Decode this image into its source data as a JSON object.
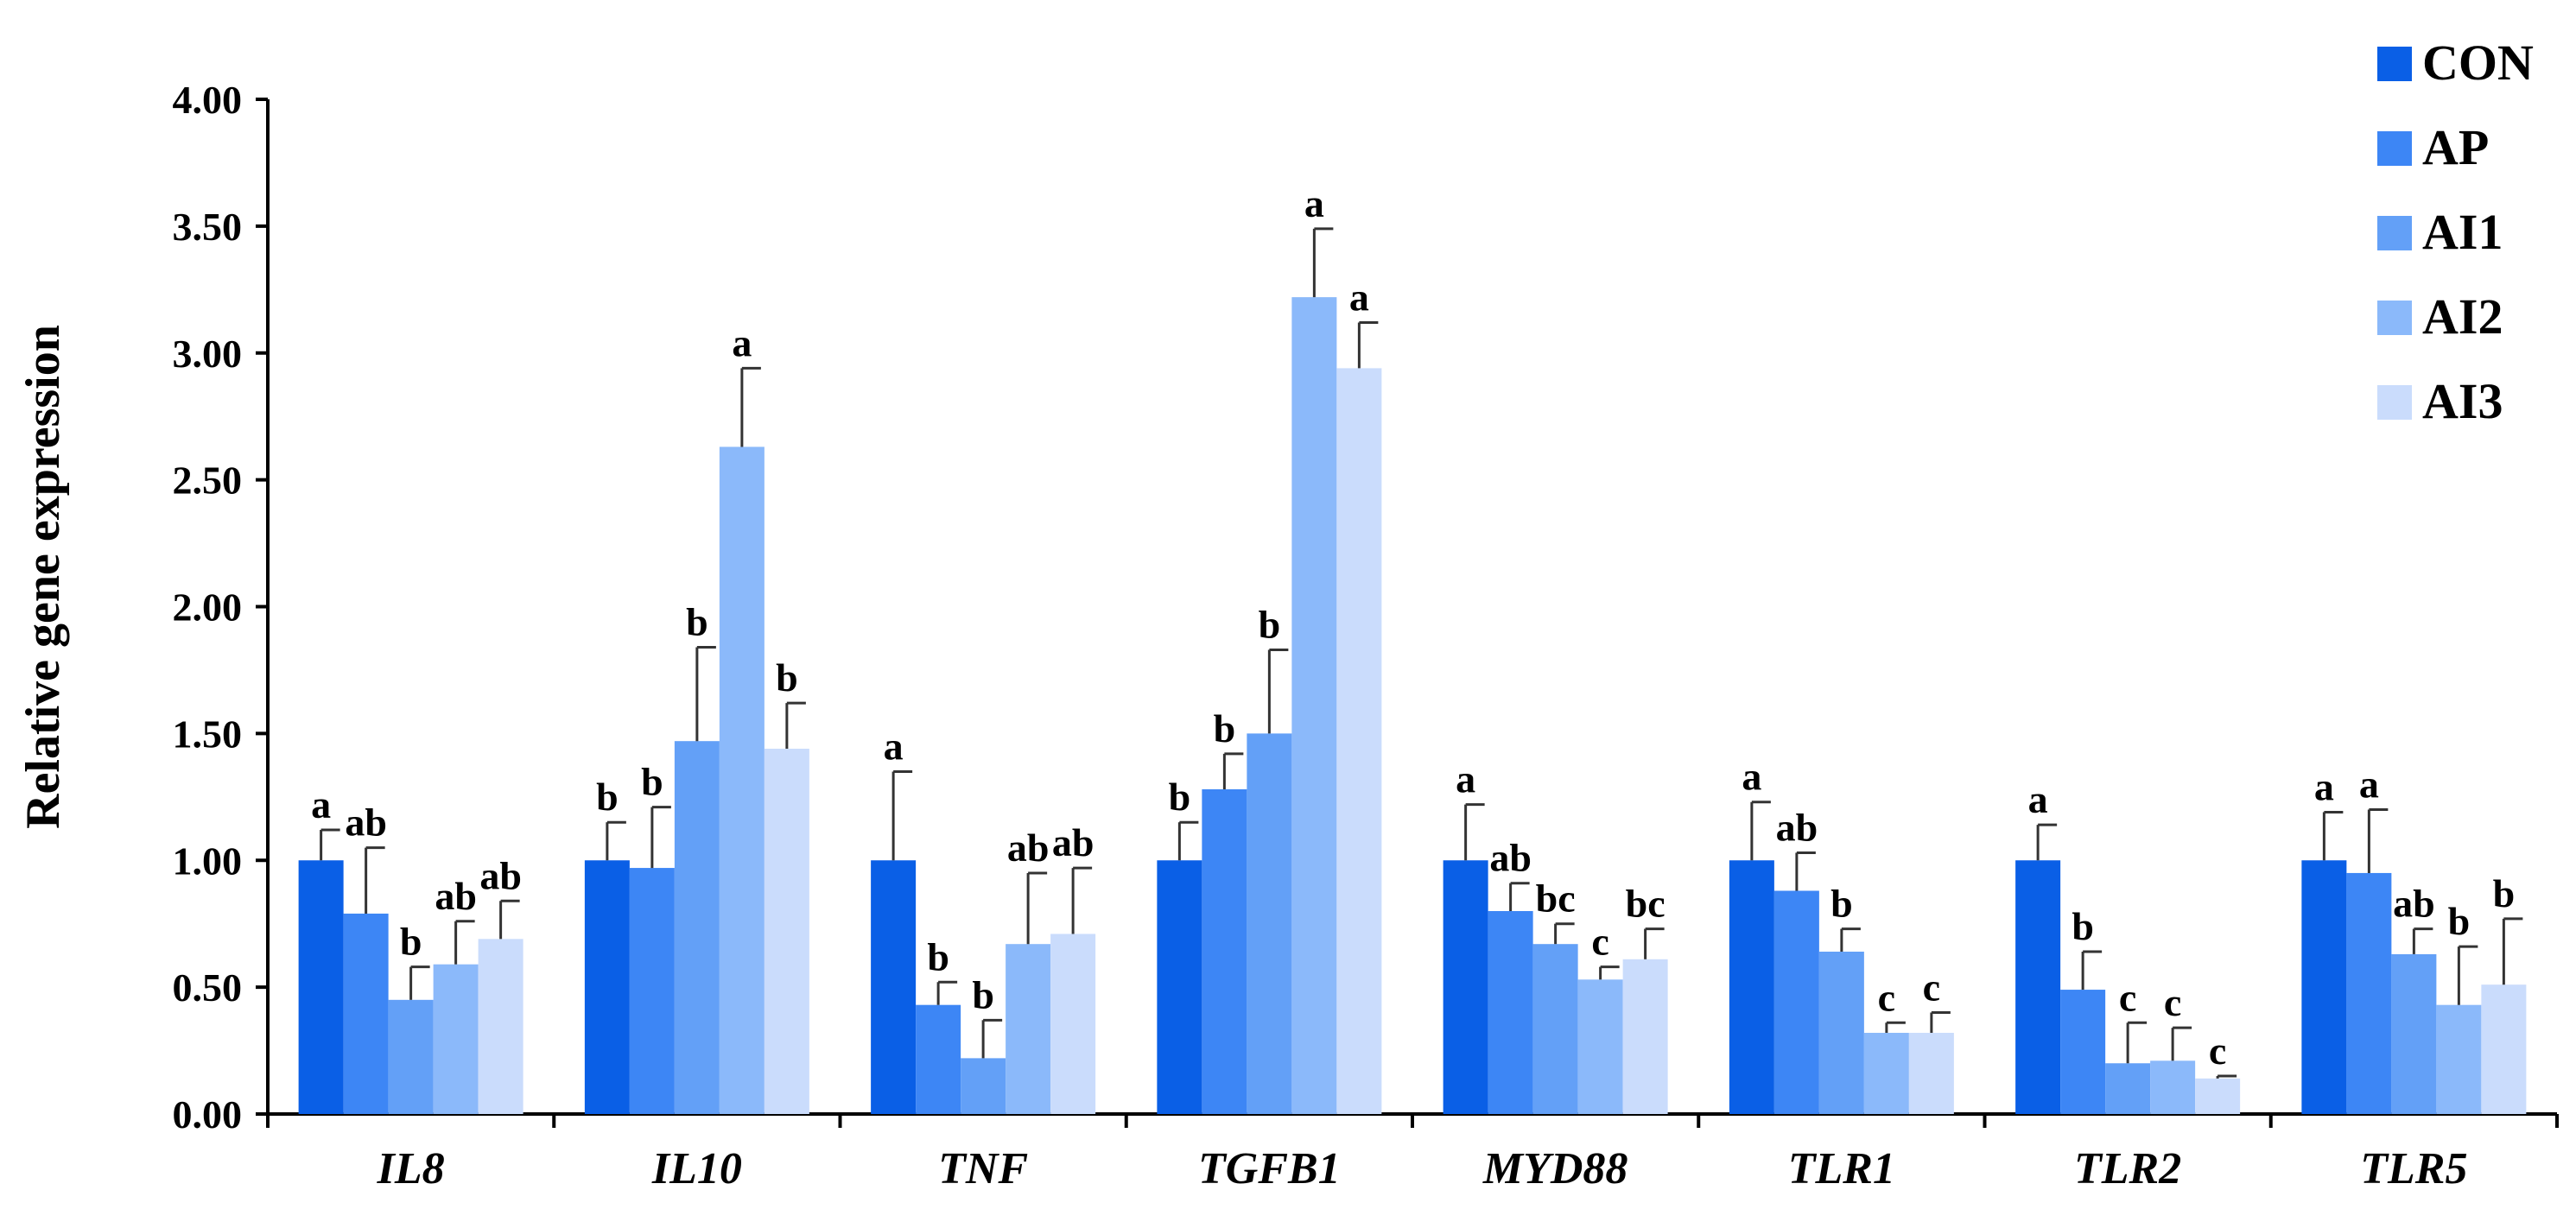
{
  "chart_data": {
    "type": "bar",
    "title": "",
    "xlabel": "",
    "ylabel": "Relative gene expression",
    "ylim": [
      0,
      4
    ],
    "y_ticks": [
      "0.00",
      "0.50",
      "1.00",
      "1.50",
      "2.00",
      "2.50",
      "3.00",
      "3.50",
      "4.00"
    ],
    "categories": [
      "IL8",
      "IL10",
      "TNF",
      "TGFB1",
      "MYD88",
      "TLR1",
      "TLR2",
      "TLR5"
    ],
    "grid": false,
    "legend_position": "top-right",
    "series": [
      {
        "name": "CON",
        "color": "#0a5fe6",
        "values": [
          1.0,
          1.0,
          1.0,
          1.0,
          1.0,
          1.0,
          1.0,
          1.0
        ],
        "errors": [
          0.12,
          0.15,
          0.35,
          0.15,
          0.22,
          0.23,
          0.14,
          0.19
        ],
        "labels": [
          "a",
          "b",
          "a",
          "b",
          "a",
          "a",
          "a",
          "a"
        ]
      },
      {
        "name": "AP",
        "color": "#3d86f5",
        "values": [
          0.79,
          0.97,
          0.43,
          1.28,
          0.8,
          0.88,
          0.49,
          0.95
        ],
        "errors": [
          0.26,
          0.24,
          0.09,
          0.14,
          0.11,
          0.15,
          0.15,
          0.25
        ],
        "labels": [
          "ab",
          "b",
          "b",
          "b",
          "ab",
          "ab",
          "b",
          "a"
        ]
      },
      {
        "name": "AI1",
        "color": "#63a0f7",
        "values": [
          0.45,
          1.47,
          0.22,
          1.5,
          0.67,
          0.64,
          0.2,
          0.63
        ],
        "errors": [
          0.13,
          0.37,
          0.15,
          0.33,
          0.08,
          0.09,
          0.16,
          0.1
        ],
        "labels": [
          "b",
          "b",
          "b",
          "b",
          "bc",
          "b",
          "c",
          "ab"
        ]
      },
      {
        "name": "AI2",
        "color": "#8bb9fa",
        "values": [
          0.59,
          2.63,
          0.67,
          3.22,
          0.53,
          0.32,
          0.21,
          0.43
        ],
        "errors": [
          0.17,
          0.31,
          0.28,
          0.27,
          0.05,
          0.04,
          0.13,
          0.23
        ],
        "labels": [
          "ab",
          "a",
          "ab",
          "a",
          "c",
          "c",
          "c",
          "b"
        ]
      },
      {
        "name": "AI3",
        "color": "#cadcfc",
        "values": [
          0.69,
          1.44,
          0.71,
          2.94,
          0.61,
          0.32,
          0.14,
          0.51
        ],
        "errors": [
          0.15,
          0.18,
          0.26,
          0.18,
          0.12,
          0.08,
          0.01,
          0.26
        ],
        "labels": [
          "ab",
          "b",
          "ab",
          "a",
          "bc",
          "c",
          "c",
          "b"
        ]
      }
    ]
  }
}
